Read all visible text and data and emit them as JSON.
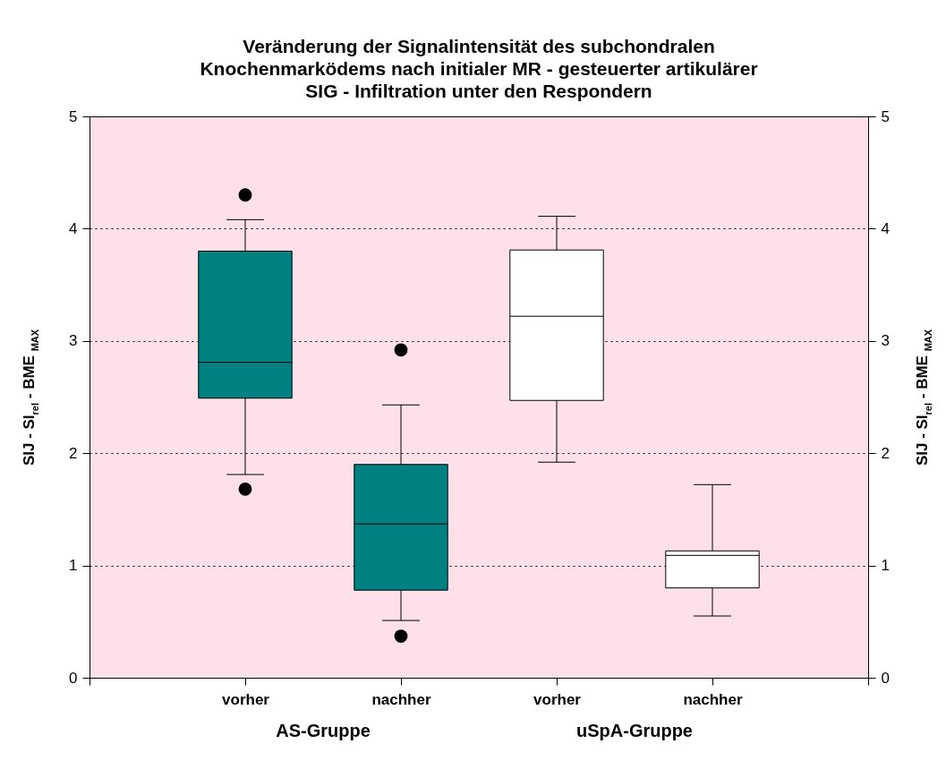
{
  "chart_data": {
    "type": "box",
    "title": "Veränderung der Signalintensität des subchondralen Knochenmarködems nach initialer MR - gesteuerter artikulärer SIG - Infiltration unter den Respondern",
    "categories": [
      "vorher",
      "nachher",
      "vorher",
      "nachher"
    ],
    "colors": [
      "#008080",
      "#008080",
      "#ffffff",
      "#ffffff"
    ],
    "boxes": [
      {
        "low": 1.81,
        "q1": 2.49,
        "median": 2.81,
        "q3": 3.8,
        "high": 4.08,
        "outliers": [
          4.3,
          1.68
        ]
      },
      {
        "low": 0.51,
        "q1": 0.78,
        "median": 1.37,
        "q3": 1.9,
        "high": 2.43,
        "outliers": [
          2.92,
          0.37
        ]
      },
      {
        "low": 1.92,
        "q1": 2.47,
        "median": 3.22,
        "q3": 3.81,
        "high": 4.11
      },
      {
        "low": 0.55,
        "q1": 0.8,
        "median": 1.09,
        "q3": 1.13,
        "high": 1.72
      }
    ],
    "ylabel": "SIJ - SI$_{rel}$ - BME $_{MAX}$",
    "y2label": "SIJ - SI$_{rel}$ - BME $_{MAX}$",
    "ylim": [
      0,
      5
    ],
    "yticks": [
      0,
      1,
      2,
      3,
      4,
      5
    ],
    "y2lim": [
      0,
      5
    ],
    "y2ticks": [
      0,
      1,
      2,
      3,
      4,
      5
    ],
    "grid": "y",
    "annotations": [
      "AS-Gruppe",
      "uSpA-Gruppe"
    ]
  }
}
